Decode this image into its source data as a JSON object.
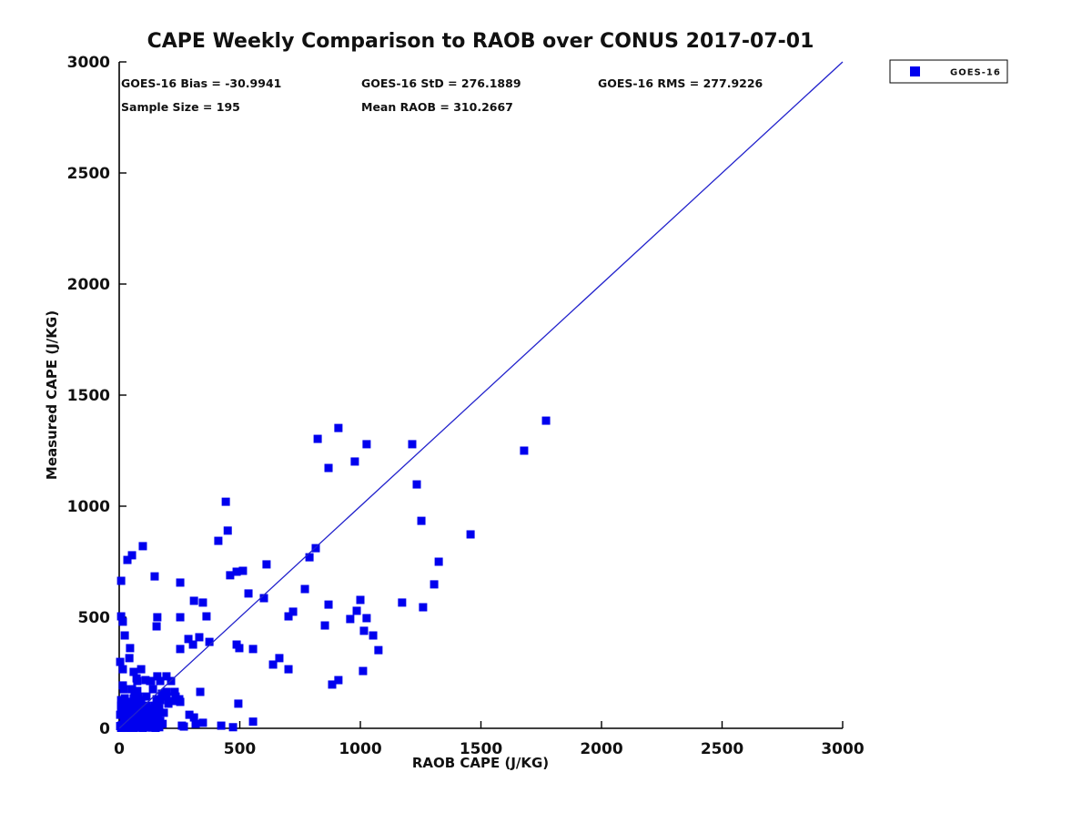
{
  "title": "CAPE Weekly Comparison to RAOB over CONUS 2017-07-01",
  "stats": {
    "bias": "GOES-16 Bias = -30.9941",
    "std": "GOES-16 StD = 276.1889",
    "rms": "GOES-16 RMS = 277.9226",
    "sample_size": "Sample Size = 195",
    "mean_raob": "Mean RAOB = 310.2667"
  },
  "legend": {
    "label": "GOES-16"
  },
  "colors": {
    "marker": "#0000ee",
    "line": "#2222cc",
    "axis": "#000000"
  },
  "chart_data": {
    "type": "scatter",
    "title": "CAPE Weekly Comparison to RAOB over CONUS 2017-07-01",
    "xlabel": "RAOB CAPE (J/KG)",
    "ylabel": "Measured CAPE (J/KG)",
    "xlim": [
      0,
      3000
    ],
    "ylim": [
      0,
      3000
    ],
    "xticks": [
      0,
      500,
      1000,
      1500,
      2000,
      2500,
      3000
    ],
    "yticks": [
      0,
      500,
      1000,
      1500,
      2000,
      2500,
      3000
    ],
    "grid": false,
    "legend_position": "top-right-outside",
    "reference_line": {
      "from": [
        0,
        0
      ],
      "to": [
        3000,
        3000
      ]
    },
    "series": [
      {
        "name": "GOES-16",
        "marker": "square",
        "points": [
          [
            909,
            1352
          ],
          [
            823,
            1303
          ],
          [
            1026,
            1279
          ],
          [
            1215,
            1279
          ],
          [
            977,
            1201
          ],
          [
            868,
            1172
          ],
          [
            1234,
            1098
          ],
          [
            1253,
            934
          ],
          [
            1457,
            873
          ],
          [
            1679,
            1250
          ],
          [
            1770,
            1385
          ],
          [
            442,
            1020
          ],
          [
            450,
            890
          ],
          [
            411,
            844
          ],
          [
            98,
            820
          ],
          [
            815,
            811
          ],
          [
            789,
            770
          ],
          [
            53,
            779
          ],
          [
            34,
            758
          ],
          [
            8,
            664
          ],
          [
            147,
            684
          ],
          [
            253,
            656
          ],
          [
            460,
            689
          ],
          [
            487,
            705
          ],
          [
            513,
            709
          ],
          [
            611,
            738
          ],
          [
            770,
            627
          ],
          [
            536,
            607
          ],
          [
            600,
            586
          ],
          [
            310,
            574
          ],
          [
            347,
            566
          ],
          [
            362,
            504
          ],
          [
            8,
            504
          ],
          [
            15,
            480
          ],
          [
            158,
            500
          ],
          [
            155,
            459
          ],
          [
            253,
            500
          ],
          [
            702,
            504
          ],
          [
            721,
            525
          ],
          [
            868,
            557
          ],
          [
            1000,
            578
          ],
          [
            985,
            529
          ],
          [
            1173,
            566
          ],
          [
            1260,
            545
          ],
          [
            958,
            492
          ],
          [
            1026,
            496
          ],
          [
            853,
            463
          ],
          [
            1306,
            648
          ],
          [
            1325,
            750
          ],
          [
            23,
            418
          ],
          [
            45,
            361
          ],
          [
            287,
            402
          ],
          [
            332,
            410
          ],
          [
            253,
            357
          ],
          [
            306,
            377
          ],
          [
            374,
            389
          ],
          [
            487,
            377
          ],
          [
            498,
            361
          ],
          [
            555,
            357
          ],
          [
            664,
            316
          ],
          [
            702,
            266
          ],
          [
            638,
            287
          ],
          [
            4,
            299
          ],
          [
            42,
            316
          ],
          [
            15,
            266
          ],
          [
            60,
            254
          ],
          [
            91,
            266
          ],
          [
            1015,
            439
          ],
          [
            1053,
            418
          ],
          [
            1075,
            352
          ],
          [
            1011,
            258
          ],
          [
            883,
            197
          ],
          [
            909,
            217
          ],
          [
            72,
            225
          ],
          [
            109,
            217
          ],
          [
            128,
            213
          ],
          [
            158,
            234
          ],
          [
            15,
            193
          ],
          [
            53,
            176
          ],
          [
            64,
            164
          ],
          [
            79,
            143
          ],
          [
            196,
            234
          ],
          [
            215,
            213
          ],
          [
            140,
            176
          ],
          [
            177,
            156
          ],
          [
            196,
            143
          ],
          [
            230,
            164
          ],
          [
            336,
            164
          ],
          [
            223,
            123
          ],
          [
            249,
            131
          ],
          [
            75,
            213
          ],
          [
            132,
            213
          ],
          [
            170,
            213
          ],
          [
            19,
            176
          ],
          [
            75,
            168
          ],
          [
            196,
            164
          ],
          [
            155,
            131
          ],
          [
            234,
            143
          ],
          [
            8,
            102
          ],
          [
            38,
            102
          ],
          [
            128,
            90
          ],
          [
            204,
            111
          ],
          [
            253,
            119
          ],
          [
            147,
            102
          ],
          [
            494,
            111
          ],
          [
            158,
            94
          ],
          [
            102,
            82
          ],
          [
            121,
            74
          ],
          [
            8,
            90
          ],
          [
            26,
            82
          ],
          [
            64,
            70
          ],
          [
            4,
            61
          ],
          [
            45,
            53
          ],
          [
            91,
            53
          ],
          [
            19,
            33
          ],
          [
            57,
            25
          ],
          [
            102,
            20
          ],
          [
            132,
            41
          ],
          [
            158,
            12
          ],
          [
            291,
            61
          ],
          [
            310,
            49
          ],
          [
            260,
            12
          ],
          [
            347,
            25
          ],
          [
            147,
            29
          ],
          [
            268,
            8
          ],
          [
            317,
            20
          ],
          [
            472,
            5
          ],
          [
            423,
            12
          ],
          [
            555,
            30
          ],
          [
            8,
            2
          ],
          [
            15,
            5
          ],
          [
            23,
            8
          ],
          [
            30,
            2
          ],
          [
            38,
            6
          ],
          [
            45,
            3
          ],
          [
            53,
            8
          ],
          [
            60,
            2
          ],
          [
            68,
            5
          ],
          [
            75,
            8
          ],
          [
            83,
            3
          ],
          [
            91,
            6
          ],
          [
            98,
            2
          ],
          [
            106,
            8
          ],
          [
            113,
            4
          ],
          [
            121,
            7
          ],
          [
            136,
            3
          ],
          [
            144,
            6
          ],
          [
            151,
            2
          ],
          [
            166,
            5
          ],
          [
            30,
            20
          ],
          [
            45,
            33
          ],
          [
            60,
            41
          ],
          [
            23,
            49
          ],
          [
            91,
            33
          ],
          [
            113,
            25
          ],
          [
            68,
            61
          ],
          [
            83,
            78
          ],
          [
            121,
            57
          ],
          [
            38,
            78
          ],
          [
            15,
            111
          ],
          [
            30,
            94
          ],
          [
            53,
            90
          ],
          [
            98,
            70
          ],
          [
            8,
            127
          ],
          [
            23,
            135
          ],
          [
            45,
            119
          ],
          [
            60,
            106
          ],
          [
            75,
            94
          ],
          [
            106,
            61
          ],
          [
            132,
            70
          ],
          [
            91,
            119
          ],
          [
            113,
            102
          ],
          [
            140,
            45
          ],
          [
            160,
            60
          ],
          [
            170,
            33
          ],
          [
            180,
            20
          ],
          [
            151,
            78
          ],
          [
            166,
            90
          ],
          [
            185,
            70
          ],
          [
            4,
            10
          ],
          [
            11,
            14
          ],
          [
            19,
            18
          ],
          [
            26,
            10
          ],
          [
            34,
            14
          ],
          [
            41,
            18
          ],
          [
            49,
            10
          ],
          [
            56,
            14
          ],
          [
            64,
            18
          ],
          [
            72,
            10
          ],
          [
            79,
            45
          ],
          [
            125,
            33
          ],
          [
            60,
            135
          ],
          [
            83,
            127
          ],
          [
            113,
            143
          ],
          [
            170,
            127
          ]
        ]
      }
    ]
  }
}
